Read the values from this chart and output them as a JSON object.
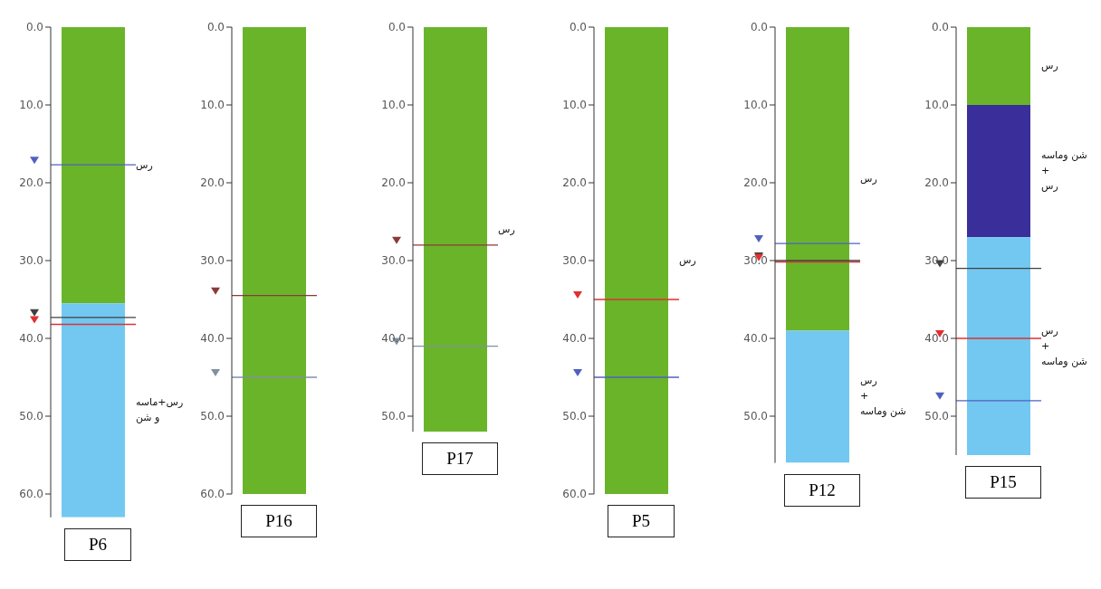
{
  "chart_data": [
    {
      "type": "bar",
      "title": "P6",
      "stacked": true,
      "tick_labels": "y",
      "categories": [
        null
      ],
      "ylim": [
        63,
        0
      ],
      "yticks": [
        {
          "value": 0,
          "label": "0.0"
        },
        {
          "value": 10,
          "label": "10.0"
        },
        {
          "value": 20,
          "label": "20.0"
        },
        {
          "value": 30,
          "label": "30.0"
        },
        {
          "value": 40,
          "label": "40.0"
        },
        {
          "value": 50,
          "label": "50.0"
        },
        {
          "value": 60,
          "label": "60.0"
        }
      ],
      "series": [
        {
          "name": "رس",
          "color": "#6ab42a",
          "values": [
            35.5
          ]
        },
        {
          "name": "رس+ماسه\nو شن",
          "color": "#72c8f0",
          "values": [
            27.5
          ]
        }
      ],
      "ref_lines": [
        {
          "axis": "y",
          "value": 17.7,
          "color": "#5060c0"
        },
        {
          "axis": "y",
          "value": 37.3,
          "color": "#404040"
        },
        {
          "axis": "y",
          "value": 38.2,
          "color": "#e03030"
        }
      ]
    },
    {
      "type": "bar",
      "title": "P16",
      "stacked": true,
      "tick_labels": "y",
      "categories": [
        null
      ],
      "ylim": [
        60,
        0
      ],
      "yticks": [
        {
          "value": 0,
          "label": "0.0"
        },
        {
          "value": 10,
          "label": "10.0"
        },
        {
          "value": 20,
          "label": "20.0"
        },
        {
          "value": 30,
          "label": "30.0"
        },
        {
          "value": 40,
          "label": "40.0"
        },
        {
          "value": 50,
          "label": "50.0"
        },
        {
          "value": 60,
          "label": "60.0"
        }
      ],
      "series": [
        {
          "color": "#6ab42a",
          "values": [
            60
          ]
        }
      ],
      "ref_lines": [
        {
          "axis": "y",
          "value": 34.5,
          "color": "#8b3a3a"
        },
        {
          "axis": "y",
          "value": 45,
          "color": "#8090a0"
        }
      ]
    },
    {
      "type": "bar",
      "title": "P17",
      "stacked": true,
      "tick_labels": "y",
      "categories": [
        null
      ],
      "ylim": [
        52,
        0
      ],
      "yticks": [
        {
          "value": 0,
          "label": "0.0"
        },
        {
          "value": 10,
          "label": "10.0"
        },
        {
          "value": 20,
          "label": "20.0"
        },
        {
          "value": 30,
          "label": "30.0"
        },
        {
          "value": 40,
          "label": "40.0"
        },
        {
          "value": 50,
          "label": "50.0"
        }
      ],
      "series": [
        {
          "name": "رس",
          "color": "#6ab42a",
          "values": [
            52
          ]
        }
      ],
      "ref_lines": [
        {
          "axis": "y",
          "value": 28,
          "color": "#8b3a3a"
        },
        {
          "axis": "y",
          "value": 41,
          "color": "#8090a0"
        }
      ]
    },
    {
      "type": "bar",
      "title": "P5",
      "stacked": true,
      "tick_labels": "y",
      "categories": [
        null
      ],
      "ylim": [
        60,
        0
      ],
      "yticks": [
        {
          "value": 0,
          "label": "0.0"
        },
        {
          "value": 10,
          "label": "10.0"
        },
        {
          "value": 20,
          "label": "20.0"
        },
        {
          "value": 30,
          "label": "30.0"
        },
        {
          "value": 40,
          "label": "40.0"
        },
        {
          "value": 50,
          "label": "50.0"
        },
        {
          "value": 60,
          "label": "60.0"
        }
      ],
      "series": [
        {
          "name": "رس",
          "color": "#6ab42a",
          "values": [
            60
          ]
        }
      ],
      "ref_lines": [
        {
          "axis": "y",
          "value": 35,
          "color": "#e03030"
        },
        {
          "axis": "y",
          "value": 45,
          "color": "#5060c0"
        }
      ]
    },
    {
      "type": "bar",
      "title": "P12",
      "stacked": true,
      "tick_labels": "y",
      "categories": [
        null
      ],
      "ylim": [
        56,
        0
      ],
      "yticks": [
        {
          "value": 0,
          "label": "0.0"
        },
        {
          "value": 10,
          "label": "10.0"
        },
        {
          "value": 20,
          "label": "20.0"
        },
        {
          "value": 30,
          "label": "30.0"
        },
        {
          "value": 40,
          "label": "40.0"
        },
        {
          "value": 50,
          "label": "50.0"
        }
      ],
      "series": [
        {
          "name": "رس",
          "color": "#6ab42a",
          "values": [
            39
          ]
        },
        {
          "name": "رس\n+\nشن وماسه",
          "color": "#72c8f0",
          "values": [
            17
          ]
        }
      ],
      "ref_lines": [
        {
          "axis": "y",
          "value": 27.8,
          "color": "#5060c0"
        },
        {
          "axis": "y",
          "value": 30,
          "color": "#404040"
        },
        {
          "axis": "y",
          "value": 30.2,
          "color": "#e03030"
        }
      ]
    },
    {
      "type": "bar",
      "title": "P15",
      "stacked": true,
      "tick_labels": "y",
      "categories": [
        null
      ],
      "ylim": [
        55,
        0
      ],
      "yticks": [
        {
          "value": 0,
          "label": "0.0"
        },
        {
          "value": 10,
          "label": "10.0"
        },
        {
          "value": 20,
          "label": "20.0"
        },
        {
          "value": 30,
          "label": "30.0"
        },
        {
          "value": 40,
          "label": "40.0"
        },
        {
          "value": 50,
          "label": "50.0"
        }
      ],
      "series": [
        {
          "name": "رس",
          "color": "#6ab42a",
          "values": [
            10
          ]
        },
        {
          "name": "شن وماسه\n+\nرس",
          "color": "#3a2f9a",
          "values": [
            17
          ]
        },
        {
          "name": "رس\n+\nشن وماسه",
          "color": "#72c8f0",
          "values": [
            28
          ]
        }
      ],
      "ref_lines": [
        {
          "axis": "y",
          "value": 31,
          "color": "#404040"
        },
        {
          "axis": "y",
          "value": 40,
          "color": "#e03030"
        },
        {
          "axis": "y",
          "value": 48,
          "color": "#5060c0"
        }
      ]
    }
  ]
}
